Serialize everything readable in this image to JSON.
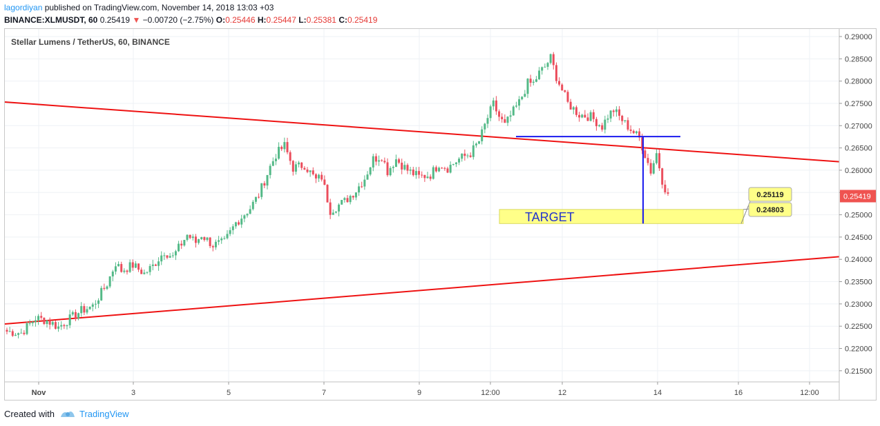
{
  "header": {
    "author": "lagordiyan",
    "published_text": " published on TradingView.com, November 14, 2018 13:03 +03",
    "symbol": "BINANCE:XLMUSDT, 60",
    "last": "0.25419",
    "change": "−0.00720 (−2.75%)",
    "o_label": "O:",
    "o_value": "0.25446",
    "h_label": "H:",
    "h_value": "0.25447",
    "l_label": "L:",
    "l_value": "0.25381",
    "c_label": "C:",
    "c_value": "0.25419"
  },
  "footer": {
    "created_with": "Created with",
    "brand": "TradingView"
  },
  "colors": {
    "up": "#53b987",
    "down": "#eb4d5c",
    "trendline": "#ee1111",
    "level": "#1a1aee",
    "target_fill": "#ffff88",
    "price_tag": "#ef5350"
  },
  "chart_data": {
    "type": "candlestick",
    "title": "Stellar Lumens / TetherUS, 60, BINANCE",
    "y_ticks": [
      "0.29000",
      "0.28500",
      "0.28000",
      "0.27500",
      "0.27000",
      "0.26500",
      "0.26000",
      "0.25500",
      "0.25000",
      "0.24500",
      "0.24000",
      "0.23500",
      "0.23000",
      "0.22500",
      "0.22000",
      "0.21500"
    ],
    "ylim": [
      0.2125,
      0.2917
    ],
    "x_ticks": [
      "Nov",
      "3",
      "5",
      "7",
      "9",
      "12:00",
      "12",
      "14",
      "16",
      "12:00"
    ],
    "grid": true,
    "last_price": "0.25419",
    "series_anchors": [
      [
        0,
        0.2238
      ],
      [
        5,
        0.2235
      ],
      [
        10,
        0.2268
      ],
      [
        14,
        0.2263
      ],
      [
        18,
        0.2248
      ],
      [
        21,
        0.2262
      ],
      [
        26,
        0.2285
      ],
      [
        30,
        0.2295
      ],
      [
        35,
        0.2345
      ],
      [
        38,
        0.2392
      ],
      [
        40,
        0.2375
      ],
      [
        44,
        0.2387
      ],
      [
        48,
        0.2368
      ],
      [
        51,
        0.2385
      ],
      [
        55,
        0.2418
      ],
      [
        58,
        0.2405
      ],
      [
        63,
        0.2455
      ],
      [
        66,
        0.2438
      ],
      [
        68,
        0.2455
      ],
      [
        72,
        0.2432
      ],
      [
        76,
        0.2438
      ],
      [
        80,
        0.2482
      ],
      [
        85,
        0.2515
      ],
      [
        88,
        0.2545
      ],
      [
        92,
        0.2608
      ],
      [
        94,
        0.2635
      ],
      [
        97,
        0.2655
      ],
      [
        100,
        0.2605
      ],
      [
        104,
        0.2612
      ],
      [
        108,
        0.2578
      ],
      [
        110,
        0.2585
      ],
      [
        113,
        0.251
      ],
      [
        118,
        0.253
      ],
      [
        122,
        0.2555
      ],
      [
        125,
        0.2582
      ],
      [
        128,
        0.2625
      ],
      [
        131,
        0.2632
      ],
      [
        133,
        0.2598
      ],
      [
        136,
        0.2625
      ],
      [
        140,
        0.26
      ],
      [
        144,
        0.2585
      ],
      [
        148,
        0.259
      ],
      [
        151,
        0.2615
      ],
      [
        154,
        0.2605
      ],
      [
        158,
        0.2625
      ],
      [
        162,
        0.2638
      ],
      [
        165,
        0.2665
      ],
      [
        168,
        0.2718
      ],
      [
        170,
        0.2748
      ],
      [
        172,
        0.272
      ],
      [
        174,
        0.27
      ],
      [
        176,
        0.2722
      ],
      [
        179,
        0.2752
      ],
      [
        182,
        0.2795
      ],
      [
        184,
        0.2795
      ],
      [
        186,
        0.2818
      ],
      [
        188,
        0.2832
      ],
      [
        190,
        0.2852
      ],
      [
        192,
        0.281
      ],
      [
        196,
        0.275
      ],
      [
        200,
        0.2725
      ],
      [
        204,
        0.272
      ],
      [
        208,
        0.2698
      ],
      [
        210,
        0.2722
      ],
      [
        212,
        0.2735
      ],
      [
        216,
        0.2705
      ],
      [
        219,
        0.2685
      ],
      [
        221,
        0.2672
      ],
      [
        223,
        0.2635
      ],
      [
        225,
        0.2598
      ],
      [
        227,
        0.2638
      ],
      [
        229,
        0.2578
      ],
      [
        231,
        0.2542
      ]
    ],
    "annotations": {
      "target_label": "TARGET",
      "target_top": "0.25119",
      "target_bottom": "0.24803"
    }
  }
}
